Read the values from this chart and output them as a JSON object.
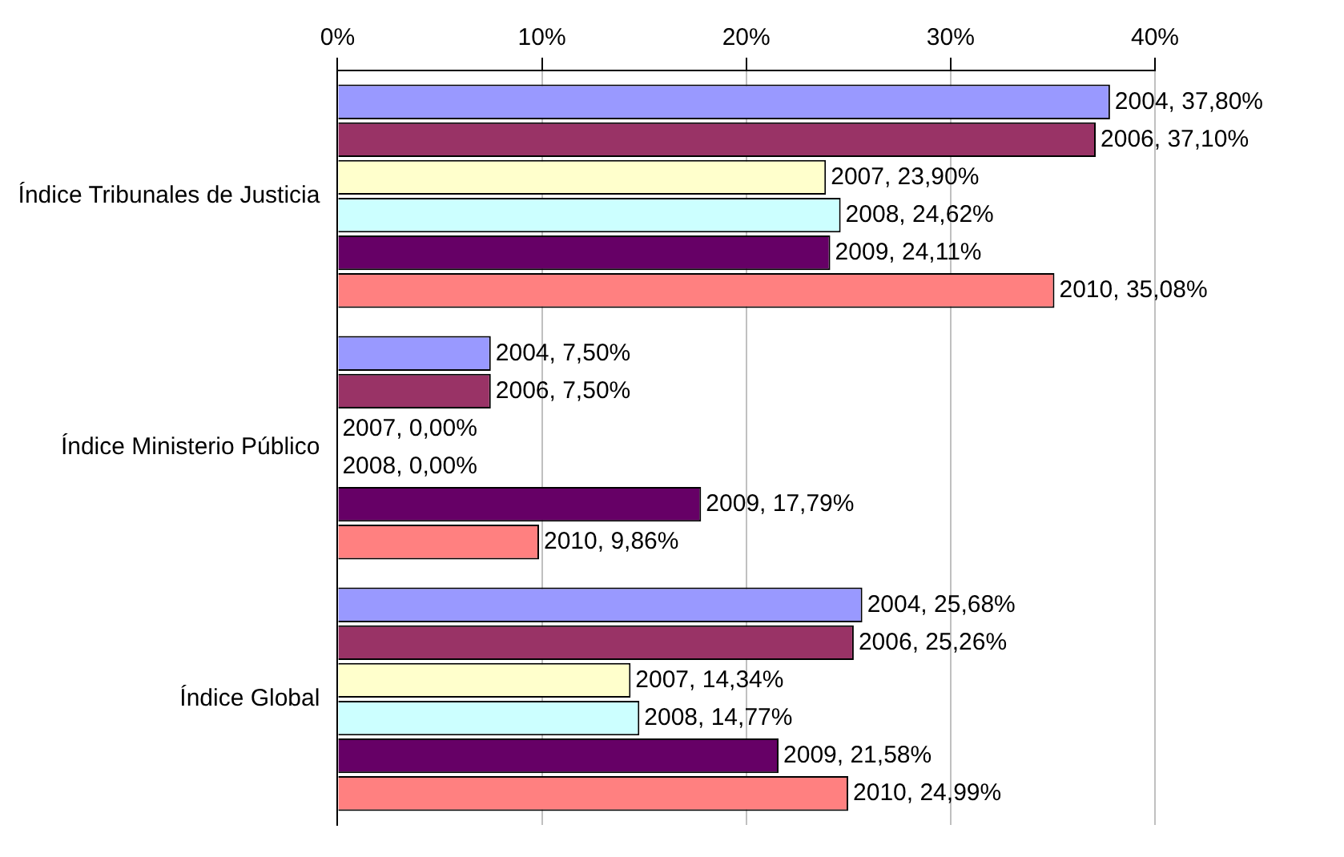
{
  "chart_data": {
    "type": "bar",
    "orientation": "horizontal",
    "categories": [
      "Índice Tribunales de Justicia",
      "Índice Ministerio Público",
      "Índice Global"
    ],
    "series": [
      {
        "color": "#9999ff",
        "values": [
          37.8,
          7.5,
          25.68
        ],
        "value_labels": [
          "2004, 37,80%",
          "2004, 7,50%",
          "2004, 25,68%"
        ]
      },
      {
        "color": "#993366",
        "values": [
          37.1,
          7.5,
          25.26
        ],
        "value_labels": [
          "2006, 37,10%",
          "2006, 7,50%",
          "2006, 25,26%"
        ]
      },
      {
        "color": "#ffffcc",
        "values": [
          23.9,
          0,
          14.34
        ],
        "value_labels": [
          "2007, 23,90%",
          "2007, 0,00%",
          "2007, 14,34%"
        ]
      },
      {
        "color": "#ccffff",
        "values": [
          24.62,
          0,
          14.77
        ],
        "value_labels": [
          "2008, 24,62%",
          "2008, 0,00%",
          "2008, 14,77%"
        ]
      },
      {
        "color": "#660066",
        "values": [
          24.11,
          17.79,
          21.58
        ],
        "value_labels": [
          "2009, 24,11%",
          "2009, 17,79%",
          "2009, 21,58%"
        ]
      },
      {
        "color": "#ff8080",
        "values": [
          35.08,
          9.86,
          24.99
        ],
        "value_labels": [
          "2010, 35,08%",
          "2010, 9,86%",
          "2010, 24,99%"
        ]
      }
    ],
    "xlim": [
      0,
      40
    ],
    "xticks": [
      {
        "value": 0,
        "label": "0%"
      },
      {
        "value": 10,
        "label": "10%"
      },
      {
        "value": 20,
        "label": "20%"
      },
      {
        "value": 30,
        "label": "30%"
      },
      {
        "value": 40,
        "label": "40%"
      }
    ],
    "grid": "x",
    "legend": false
  }
}
